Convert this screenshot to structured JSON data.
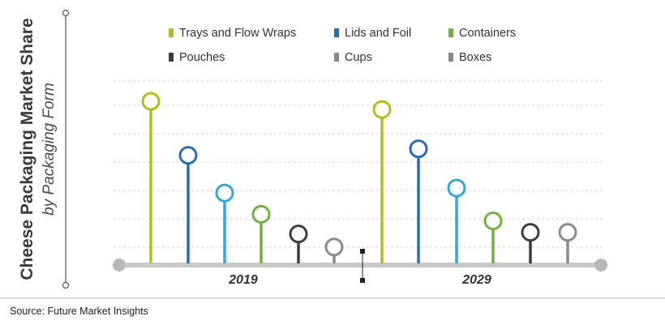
{
  "chart_data": {
    "type": "lollipop",
    "title": "Cheese Packaging Market Share",
    "subtitle": "by Packaging Form",
    "categories": [
      "2019",
      "2029"
    ],
    "ylim": [
      0,
      100
    ],
    "grid": true,
    "legend_position": "top",
    "series": [
      {
        "name": "Trays and Flow Wraps",
        "color": "#b5bd1e",
        "values": [
          100,
          95
        ]
      },
      {
        "name": "Lids and Foil",
        "color": "#2a6cb3",
        "values": [
          67,
          71
        ]
      },
      {
        "name": "Containers",
        "color": "#6cb33f",
        "values": [
          31,
          27
        ]
      },
      {
        "name": "Pouches",
        "color": "#3d3d3d",
        "values": [
          19,
          20
        ]
      },
      {
        "name": "Cups",
        "color": "#8a8a8a",
        "values": [
          11,
          20
        ]
      },
      {
        "name": "Boxes",
        "color": "#a0a0a0",
        "values": [
          0,
          0
        ]
      }
    ],
    "extra_series_colors": {
      "third_stem": "#35a5d8"
    },
    "source": "Source: Future Market Insights"
  }
}
